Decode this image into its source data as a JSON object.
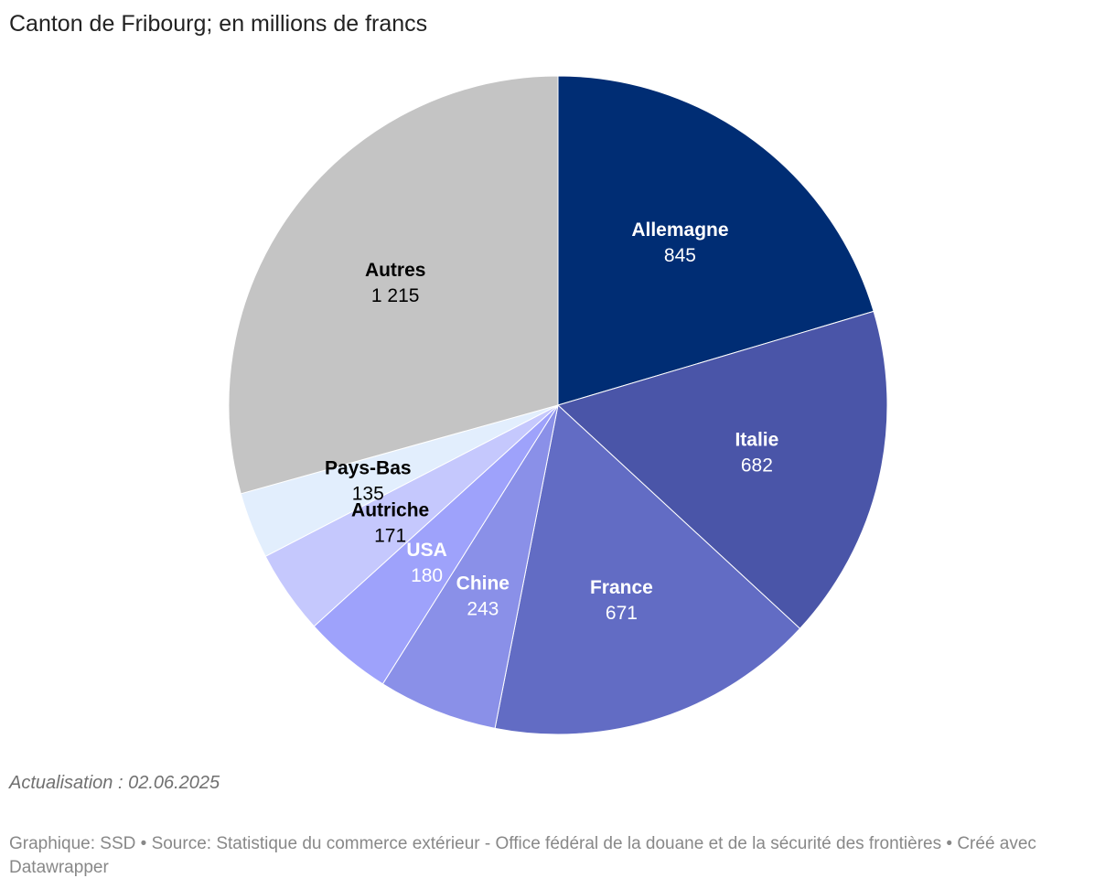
{
  "chart_data": {
    "type": "pie",
    "title": "Canton de Fribourg; en millions de francs",
    "start": "top",
    "direction": "clockwise",
    "slices": [
      {
        "label": "Allemagne",
        "value": 845,
        "display": "845",
        "color": "#002d74",
        "text_color": "#ffffff"
      },
      {
        "label": "Italie",
        "value": 682,
        "display": "682",
        "color": "#4a55a8",
        "text_color": "#ffffff"
      },
      {
        "label": "France",
        "value": 671,
        "display": "671",
        "color": "#626cc4",
        "text_color": "#ffffff"
      },
      {
        "label": "Chine",
        "value": 243,
        "display": "243",
        "color": "#8a90e8",
        "text_color": "#ffffff"
      },
      {
        "label": "USA",
        "value": 180,
        "display": "180",
        "color": "#9ea2fb",
        "text_color": "#ffffff"
      },
      {
        "label": "Autriche",
        "value": 171,
        "display": "171",
        "color": "#c5c8fd",
        "text_color": "#000000"
      },
      {
        "label": "Pays-Bas",
        "value": 135,
        "display": "135",
        "color": "#e2eefd",
        "text_color": "#000000"
      },
      {
        "label": "Autres",
        "value": 1215,
        "display": "1 215",
        "color": "#c4c4c4",
        "text_color": "#000000"
      }
    ]
  },
  "notes": "Actualisation : 02.06.2025",
  "credits": "Graphique: SSD • Source: Statistique du commerce extérieur - Office fédéral de la douane et de la sécurité des frontières • Créé avec Datawrapper"
}
